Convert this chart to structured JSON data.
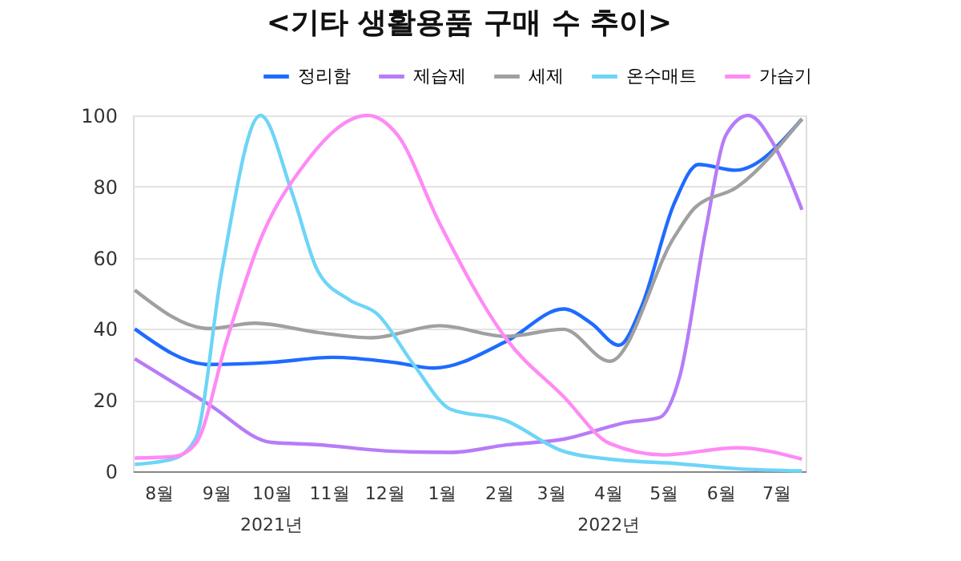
{
  "chart_data": {
    "type": "line",
    "title": "<기타 생활용품 구매 수 추이>",
    "xlim": [
      "2021-08-01",
      "2022-07-31"
    ],
    "xticks": [
      {
        "value": "2021-08-15",
        "label": "8월"
      },
      {
        "value": "2021-09-15",
        "label": "9월"
      },
      {
        "value": "2021-10-15",
        "label": "10월"
      },
      {
        "value": "2021-11-15",
        "label": "11월"
      },
      {
        "value": "2021-12-15",
        "label": "12월"
      },
      {
        "value": "2022-01-15",
        "label": "1월"
      },
      {
        "value": "2022-02-15",
        "label": "2월"
      },
      {
        "value": "2022-03-15",
        "label": "3월"
      },
      {
        "value": "2022-04-15",
        "label": "4월"
      },
      {
        "value": "2022-05-15",
        "label": "5월"
      },
      {
        "value": "2022-06-15",
        "label": "6월"
      },
      {
        "value": "2022-07-15",
        "label": "7월"
      }
    ],
    "ylim": [
      0,
      100
    ],
    "yticks": [
      0,
      20,
      40,
      60,
      80,
      100
    ],
    "grid": "y",
    "legend": "top right",
    "marker": "none",
    "line_style": "solid",
    "series": [
      {
        "name": "정리함",
        "color": "#1f6bff",
        "x": [
          "2021-08-02",
          "2021-09-11",
          "2021-10-15",
          "2021-11-17",
          "2021-12-20",
          "2022-01-11",
          "2022-02-19",
          "2022-03-22",
          "2022-04-06",
          "2022-04-21",
          "2022-05-03",
          "2022-05-21",
          "2022-06-03",
          "2022-06-23",
          "2022-07-29"
        ],
        "values": [
          40,
          30,
          30.6,
          32,
          30.6,
          29,
          36.5,
          45.6,
          41.6,
          35.4,
          46,
          75.4,
          86.2,
          84.6,
          99
        ]
      },
      {
        "name": "제습제",
        "color": "#b77cf7",
        "x": [
          "2021-08-02",
          "2021-09-11",
          "2021-10-15",
          "2021-11-08",
          "2021-12-20",
          "2022-01-20",
          "2022-02-19",
          "2022-03-22",
          "2022-04-25",
          "2022-05-13",
          "2022-05-24",
          "2022-06-07",
          "2022-06-18",
          "2022-06-30",
          "2022-07-14",
          "2022-07-29"
        ],
        "values": [
          31.6,
          18.8,
          8.1,
          7.5,
          5.6,
          5.3,
          7.4,
          9,
          13.7,
          15.1,
          26.9,
          68,
          94.6,
          100,
          91.6,
          73.5
        ]
      },
      {
        "name": "세제",
        "color": "#a0a0a0",
        "x": [
          "2021-08-02",
          "2021-09-11",
          "2021-10-06",
          "2021-11-09",
          "2021-12-08",
          "2022-01-14",
          "2022-02-19",
          "2022-03-22",
          "2022-04-16",
          "2022-05-21",
          "2022-06-01",
          "2022-06-24",
          "2022-07-29"
        ],
        "values": [
          50.9,
          40.1,
          41.6,
          39,
          37.5,
          40.9,
          37.9,
          39.9,
          30.9,
          65.9,
          74,
          79.9,
          99
        ]
      },
      {
        "name": "온수매트",
        "color": "#6dd5f7",
        "x": [
          "2021-08-02",
          "2021-08-23",
          "2021-09-04",
          "2021-09-18",
          "2021-10-09",
          "2021-10-26",
          "2021-11-09",
          "2021-11-26",
          "2021-12-11",
          "2021-12-31",
          "2022-01-20",
          "2022-02-18",
          "2022-03-22",
          "2022-04-22",
          "2022-05-21",
          "2022-06-24",
          "2022-07-29"
        ],
        "values": [
          1.9,
          3.5,
          9.3,
          56,
          100,
          78.4,
          56.3,
          48.2,
          44.3,
          29.9,
          17.4,
          14.4,
          5.6,
          3.1,
          2.2,
          0.7,
          0.1
        ]
      },
      {
        "name": "가습기",
        "color": "#ff8af5",
        "x": [
          "2021-08-02",
          "2021-08-23",
          "2021-09-04",
          "2021-09-21",
          "2021-10-09",
          "2021-11-01",
          "2021-12-06",
          "2021-12-22",
          "2022-01-14",
          "2022-02-19",
          "2022-03-22",
          "2022-04-16",
          "2022-05-15",
          "2022-06-24",
          "2022-07-29"
        ],
        "values": [
          3.7,
          4.1,
          7.8,
          37.2,
          65.1,
          85.7,
          100,
          94.6,
          69.6,
          37.2,
          21,
          7.8,
          4.6,
          6.6,
          3.4
        ]
      }
    ],
    "annotations": [
      "2021년",
      "2022년"
    ]
  }
}
